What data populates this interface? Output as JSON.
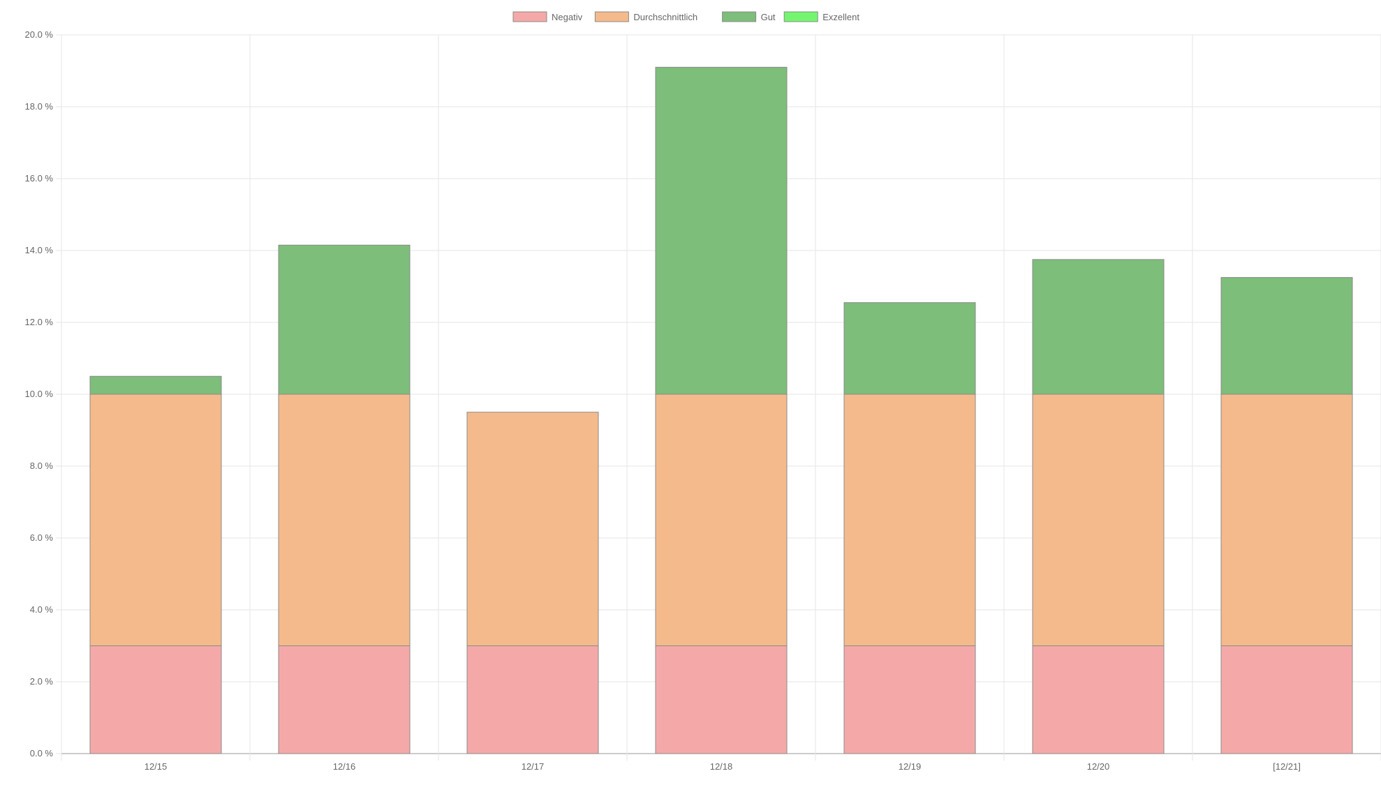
{
  "chart_data": {
    "type": "bar",
    "stacked": true,
    "title": "",
    "xlabel": "",
    "ylabel": "",
    "categories": [
      "12/15",
      "12/16",
      "12/17",
      "12/18",
      "12/19",
      "12/20",
      "[12/21]"
    ],
    "ylim": [
      0,
      20
    ],
    "y_ticks": [
      "0.0 %",
      "2.0 %",
      "4.0 %",
      "6.0 %",
      "8.0 %",
      "10.0 %",
      "12.0 %",
      "14.0 %",
      "16.0 %",
      "18.0 %",
      "20.0 %"
    ],
    "grid": true,
    "legend_position": "top",
    "series": [
      {
        "name": "Negativ",
        "color": "#f4a9a8",
        "values": [
          3,
          3,
          3,
          3,
          3,
          3,
          3
        ]
      },
      {
        "name": "Durchschnittlich",
        "color": "#f5ba8b",
        "values": [
          7,
          7,
          6.5,
          7,
          7,
          7,
          7
        ]
      },
      {
        "name": "Gut",
        "color": "#7dbe7a",
        "values": [
          0.5,
          4.15,
          0,
          9.1,
          2.55,
          3.75,
          3.25
        ]
      },
      {
        "name": "Exzellent",
        "color": "#74f56f",
        "values": [
          0,
          0,
          0,
          0,
          0,
          0,
          0
        ]
      }
    ]
  }
}
